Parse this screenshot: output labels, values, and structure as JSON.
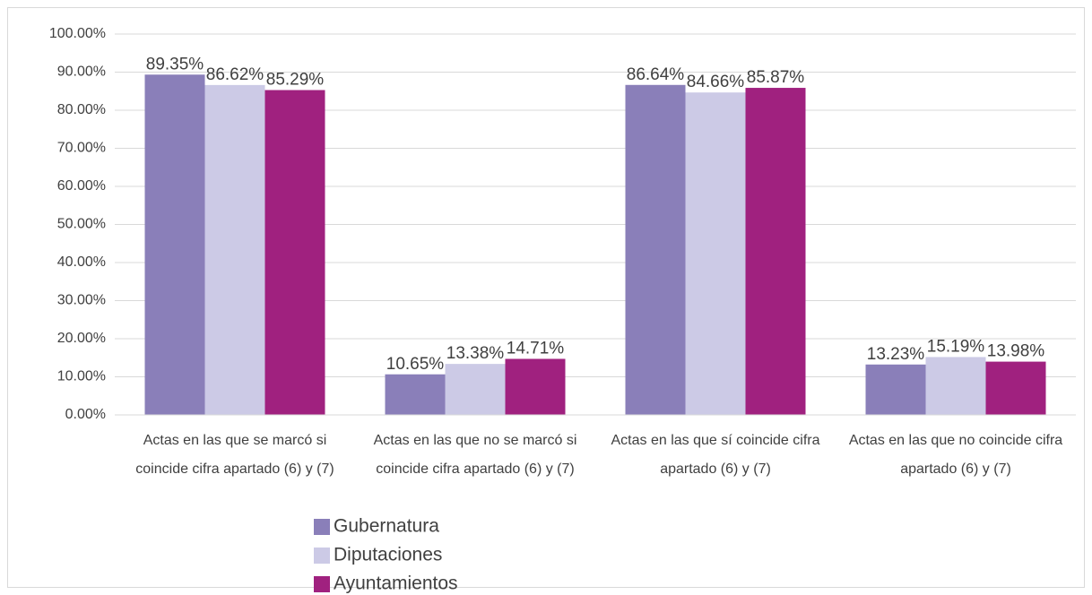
{
  "chart_data": {
    "type": "bar",
    "categories": [
      "Actas en las que se marcó si coincide cifra apartado (6) y (7)",
      "Actas en las que no se marcó si coincide cifra apartado (6) y (7)",
      "Actas en las que sí coincide cifra apartado (6) y (7)",
      "Actas en las que no coincide cifra apartado (6) y (7)"
    ],
    "series": [
      {
        "name": "Gubernatura",
        "color": "#8a7fb9",
        "values": [
          89.35,
          10.65,
          86.64,
          13.23
        ],
        "value_labels": [
          "89.35%",
          "10.65%",
          "86.64%",
          "13.23%"
        ]
      },
      {
        "name": "Diputaciones",
        "color": "#cccae6",
        "values": [
          86.62,
          13.38,
          84.66,
          15.19
        ],
        "value_labels": [
          "86.62%",
          "13.38%",
          "84.66%",
          "15.19%"
        ]
      },
      {
        "name": "Ayuntamientos",
        "color": "#a0217f",
        "values": [
          85.29,
          14.71,
          85.87,
          13.98
        ],
        "value_labels": [
          "85.29%",
          "14.71%",
          "85.87%",
          "13.98%"
        ]
      }
    ],
    "ylim": [
      0,
      100
    ],
    "yticks": [
      {
        "value": 0,
        "label": "0.00%"
      },
      {
        "value": 10,
        "label": "10.00%"
      },
      {
        "value": 20,
        "label": "20.00%"
      },
      {
        "value": 30,
        "label": "30.00%"
      },
      {
        "value": 40,
        "label": "40.00%"
      },
      {
        "value": 50,
        "label": "50.00%"
      },
      {
        "value": 60,
        "label": "60.00%"
      },
      {
        "value": 70,
        "label": "70.00%"
      },
      {
        "value": 80,
        "label": "80.00%"
      },
      {
        "value": 90,
        "label": "90.00%"
      },
      {
        "value": 100,
        "label": "100.00%"
      }
    ],
    "grid": true,
    "legend": "bottom"
  }
}
